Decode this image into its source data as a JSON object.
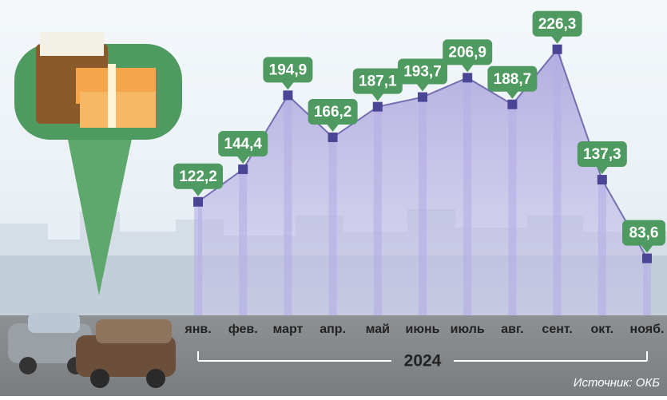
{
  "chart_data": {
    "type": "area",
    "categories": [
      "янв.",
      "фев.",
      "март",
      "апр.",
      "май",
      "июнь",
      "июль",
      "авг.",
      "сент.",
      "окт.",
      "нояб."
    ],
    "values": [
      122.2,
      144.4,
      194.9,
      166.2,
      187.1,
      193.7,
      206.9,
      188.7,
      226.3,
      137.3,
      83.6
    ],
    "value_labels": [
      "122,2",
      "144,4",
      "194,9",
      "166,2",
      "187,1",
      "193,7",
      "206,9",
      "188,7",
      "226,3",
      "137,3",
      "83,6"
    ],
    "color": "#4b4596",
    "label_color": "#4f9a60",
    "period": "2024",
    "source": "Источник: ОКБ"
  }
}
